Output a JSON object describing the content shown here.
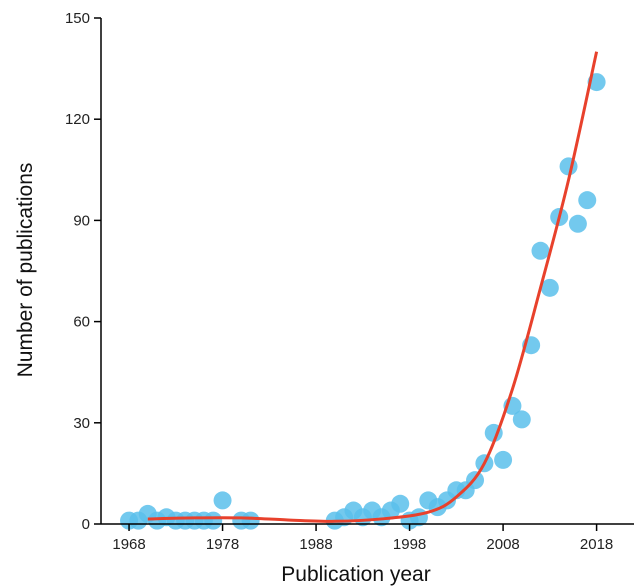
{
  "chart_data": {
    "type": "scatter",
    "title": "",
    "xlabel": "Publication year",
    "ylabel": "Number of publications",
    "xlim": [
      1965,
      2022
    ],
    "ylim": [
      0,
      150
    ],
    "x_ticks": [
      1968,
      1978,
      1988,
      1998,
      2008,
      2018
    ],
    "y_ticks": [
      0,
      30,
      60,
      90,
      120,
      150
    ],
    "grid": false,
    "colors": {
      "points": "#5bc0eb",
      "trend": "#e8412c",
      "axis": "#000000"
    },
    "series": [
      {
        "kind": "points",
        "x": [
          1968,
          1969,
          1970,
          1971,
          1972,
          1973,
          1974,
          1975,
          1976,
          1977,
          1978,
          1980,
          1981,
          1990,
          1991,
          1992,
          1993,
          1994,
          1995,
          1996,
          1997,
          1998,
          1999,
          2000,
          2001,
          2002,
          2003,
          2004,
          2005,
          2006,
          2007,
          2008,
          2009,
          2010,
          2011,
          2012,
          2013,
          2014,
          2015,
          2016,
          2017,
          2018
        ],
        "y": [
          1,
          1,
          3,
          1,
          2,
          1,
          1,
          1,
          1,
          1,
          7,
          1,
          1,
          1,
          2,
          4,
          2,
          4,
          2,
          4,
          6,
          1,
          2,
          7,
          5,
          7,
          10,
          10,
          13,
          18,
          27,
          19,
          35,
          31,
          53,
          81,
          70,
          91,
          106,
          89,
          96,
          131
        ]
      },
      {
        "kind": "trend",
        "x": [
          1970,
          1975,
          1980,
          1985,
          1990,
          1995,
          2000,
          2003,
          2006,
          2009,
          2012,
          2015,
          2018
        ],
        "y": [
          1.5,
          1.8,
          1.8,
          1.2,
          0.8,
          1.5,
          3.5,
          8,
          18,
          40,
          70,
          102,
          140
        ]
      }
    ]
  }
}
